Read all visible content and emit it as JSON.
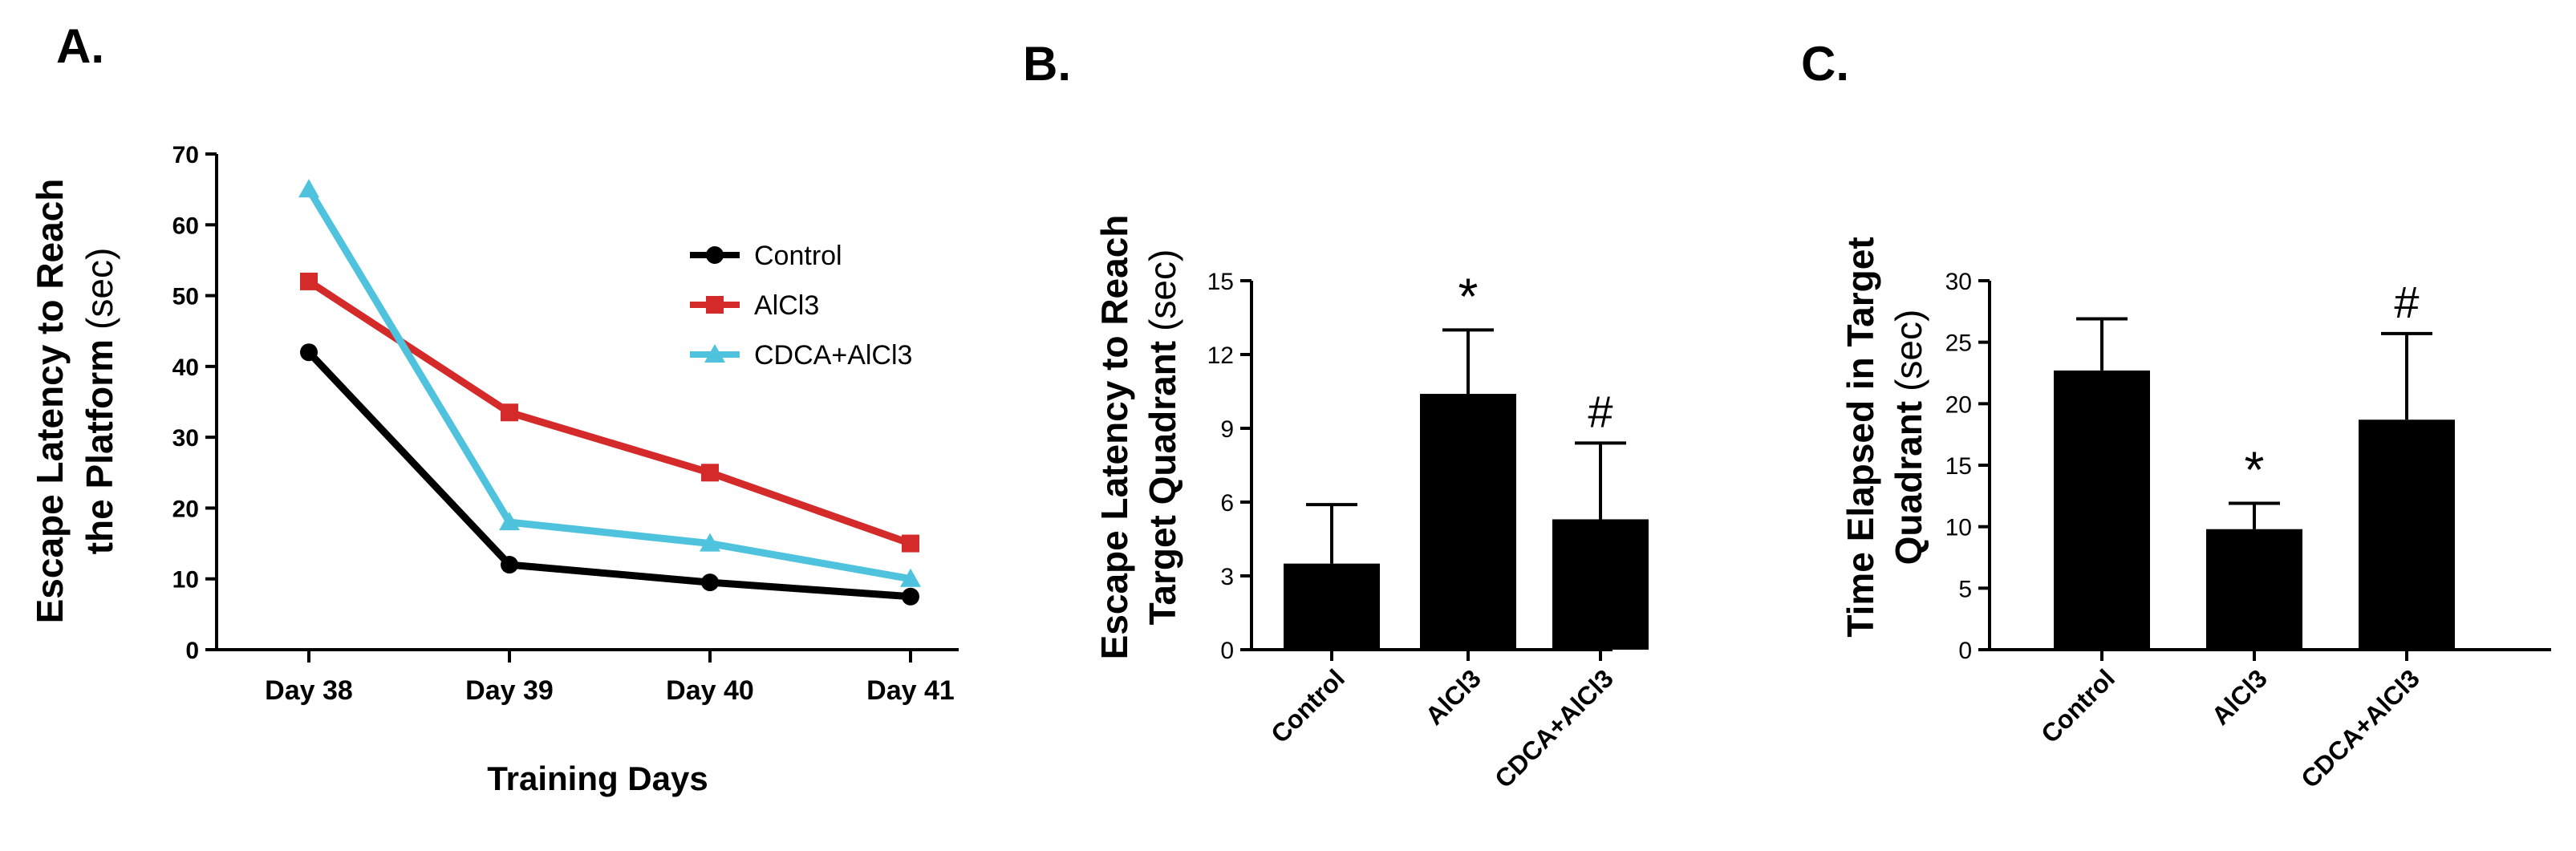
{
  "chart_data": [
    {
      "panel_label": "A.",
      "type": "line",
      "categories": [
        "Day 38",
        "Day 39",
        "Day 40",
        "Day 41"
      ],
      "series": [
        {
          "name": "Control",
          "values": [
            42,
            12,
            9.5,
            7.5
          ],
          "color": "#000000",
          "marker": "circle"
        },
        {
          "name": "AlCl3",
          "values": [
            52,
            33.5,
            25,
            15
          ],
          "color": "#d42a2a",
          "marker": "square"
        },
        {
          "name": "CDCA+AlCl3",
          "values": [
            65,
            18,
            15,
            10
          ],
          "color": "#4fc3dd",
          "marker": "triangle"
        }
      ],
      "xlabel": "Training Days",
      "ylabel_bold": "Escape Latency to Reach",
      "ylabel_line2": "the Platform",
      "ylabel_unit": "(sec)",
      "ylim": [
        0,
        70
      ],
      "yticks": [
        0,
        10,
        20,
        30,
        40,
        50,
        60,
        70
      ],
      "legend": "right",
      "grid": false
    },
    {
      "panel_label": "B.",
      "type": "bar",
      "categories": [
        "Control",
        "AlCl3",
        "CDCA+AlCl3"
      ],
      "values": [
        3.5,
        10.4,
        5.3
      ],
      "errors": [
        2.4,
        2.6,
        3.1
      ],
      "annotations": [
        "",
        "*",
        "#"
      ],
      "ylabel_bold": "Escape Latency to Reach",
      "ylabel_line2": "Target Quadrant",
      "ylabel_unit": "(sec)",
      "ylim": [
        0,
        15
      ],
      "yticks": [
        0,
        3,
        6,
        9,
        12,
        15
      ],
      "bar_color": "#000000"
    },
    {
      "panel_label": "C.",
      "type": "bar",
      "categories": [
        "Control",
        "AlCl3",
        "CDCA+AlCl3"
      ],
      "values": [
        22.7,
        9.8,
        18.7
      ],
      "errors": [
        4.2,
        2.1,
        7.0
      ],
      "annotations": [
        "",
        "*",
        "#"
      ],
      "ylabel_bold": "Time Elapsed in Target",
      "ylabel_line2": "Quadrant",
      "ylabel_unit": "(sec)",
      "ylim": [
        0,
        30
      ],
      "yticks": [
        0,
        5,
        10,
        15,
        20,
        25,
        30
      ],
      "bar_color": "#000000"
    }
  ]
}
